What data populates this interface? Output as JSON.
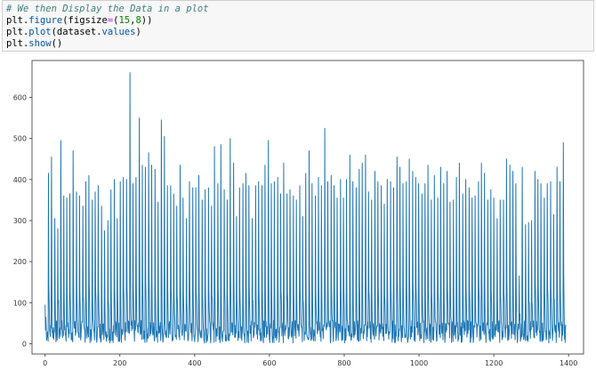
{
  "cell": {
    "lines": [
      {
        "parts": [
          {
            "cls": "cm",
            "text": "# We then Display the Data in a plot"
          }
        ]
      },
      {
        "parts": [
          {
            "cls": "",
            "text": "plt."
          },
          {
            "cls": "fn",
            "text": "figure"
          },
          {
            "cls": "",
            "text": "(figsize"
          },
          {
            "cls": "op",
            "text": "="
          },
          {
            "cls": "",
            "text": "("
          },
          {
            "cls": "num",
            "text": "15"
          },
          {
            "cls": "",
            "text": ","
          },
          {
            "cls": "num",
            "text": "8"
          },
          {
            "cls": "",
            "text": "))"
          }
        ]
      },
      {
        "parts": [
          {
            "cls": "",
            "text": "plt."
          },
          {
            "cls": "fn",
            "text": "plot"
          },
          {
            "cls": "",
            "text": "(dataset."
          },
          {
            "cls": "fn",
            "text": "values"
          },
          {
            "cls": "",
            "text": ")"
          }
        ]
      },
      {
        "parts": [
          {
            "cls": "",
            "text": "plt."
          },
          {
            "cls": "fn",
            "text": "show"
          },
          {
            "cls": "",
            "text": "()"
          }
        ]
      }
    ]
  },
  "chart_data": {
    "type": "line",
    "title": "",
    "xlabel": "",
    "ylabel": "",
    "xlim": [
      -35,
      1440
    ],
    "ylim": [
      -25,
      690
    ],
    "xticks": [
      0,
      200,
      400,
      600,
      800,
      1000,
      1200,
      1400
    ],
    "yticks": [
      0,
      100,
      200,
      300,
      400,
      500,
      600
    ],
    "line_color": "#1f77b4",
    "grid": false,
    "legend": "none",
    "series": [
      {
        "peaks": [
          [
            0,
            95
          ],
          [
            9,
            415
          ],
          [
            17,
            455
          ],
          [
            26,
            305
          ],
          [
            34,
            280
          ],
          [
            42,
            495
          ],
          [
            50,
            360
          ],
          [
            58,
            355
          ],
          [
            66,
            365
          ],
          [
            75,
            470
          ],
          [
            84,
            370
          ],
          [
            92,
            360
          ],
          [
            101,
            335
          ],
          [
            109,
            395
          ],
          [
            117,
            410
          ],
          [
            126,
            350
          ],
          [
            134,
            370
          ],
          [
            142,
            385
          ],
          [
            151,
            335
          ],
          [
            159,
            275
          ],
          [
            168,
            300
          ],
          [
            176,
            375
          ],
          [
            185,
            400
          ],
          [
            193,
            305
          ],
          [
            201,
            395
          ],
          [
            209,
            405
          ],
          [
            218,
            400
          ],
          [
            227,
            660
          ],
          [
            235,
            390
          ],
          [
            243,
            405
          ],
          [
            252,
            550
          ],
          [
            260,
            435
          ],
          [
            268,
            430
          ],
          [
            277,
            465
          ],
          [
            285,
            435
          ],
          [
            294,
            425
          ],
          [
            302,
            345
          ],
          [
            311,
            545
          ],
          [
            319,
            505
          ],
          [
            327,
            385
          ],
          [
            336,
            385
          ],
          [
            344,
            365
          ],
          [
            352,
            335
          ],
          [
            361,
            435
          ],
          [
            369,
            355
          ],
          [
            378,
            305
          ],
          [
            386,
            395
          ],
          [
            395,
            380
          ],
          [
            403,
            380
          ],
          [
            411,
            410
          ],
          [
            420,
            350
          ],
          [
            428,
            375
          ],
          [
            437,
            380
          ],
          [
            445,
            335
          ],
          [
            453,
            480
          ],
          [
            462,
            390
          ],
          [
            470,
            485
          ],
          [
            479,
            375
          ],
          [
            487,
            350
          ],
          [
            495,
            500
          ],
          [
            504,
            440
          ],
          [
            512,
            310
          ],
          [
            520,
            380
          ],
          [
            529,
            390
          ],
          [
            537,
            415
          ],
          [
            545,
            385
          ],
          [
            554,
            305
          ],
          [
            563,
            385
          ],
          [
            571,
            395
          ],
          [
            580,
            385
          ],
          [
            588,
            435
          ],
          [
            597,
            495
          ],
          [
            605,
            390
          ],
          [
            613,
            395
          ],
          [
            622,
            405
          ],
          [
            630,
            365
          ],
          [
            638,
            440
          ],
          [
            647,
            365
          ],
          [
            655,
            375
          ],
          [
            664,
            360
          ],
          [
            672,
            350
          ],
          [
            681,
            385
          ],
          [
            689,
            310
          ],
          [
            697,
            415
          ],
          [
            706,
            470
          ],
          [
            714,
            390
          ],
          [
            723,
            360
          ],
          [
            731,
            405
          ],
          [
            739,
            385
          ],
          [
            748,
            525
          ],
          [
            756,
            395
          ],
          [
            765,
            410
          ],
          [
            773,
            385
          ],
          [
            781,
            355
          ],
          [
            790,
            400
          ],
          [
            798,
            355
          ],
          [
            806,
            400
          ],
          [
            815,
            460
          ],
          [
            823,
            395
          ],
          [
            832,
            380
          ],
          [
            840,
            425
          ],
          [
            848,
            440
          ],
          [
            857,
            460
          ],
          [
            865,
            370
          ],
          [
            873,
            350
          ],
          [
            882,
            420
          ],
          [
            890,
            395
          ],
          [
            899,
            385
          ],
          [
            907,
            340
          ],
          [
            915,
            400
          ],
          [
            924,
            395
          ],
          [
            932,
            380
          ],
          [
            941,
            455
          ],
          [
            949,
            430
          ],
          [
            957,
            390
          ],
          [
            966,
            395
          ],
          [
            974,
            450
          ],
          [
            983,
            420
          ],
          [
            991,
            405
          ],
          [
            999,
            390
          ],
          [
            1008,
            365
          ],
          [
            1016,
            390
          ],
          [
            1024,
            435
          ],
          [
            1033,
            350
          ],
          [
            1041,
            410
          ],
          [
            1050,
            355
          ],
          [
            1058,
            430
          ],
          [
            1066,
            390
          ],
          [
            1075,
            420
          ],
          [
            1083,
            345
          ],
          [
            1092,
            350
          ],
          [
            1100,
            405
          ],
          [
            1108,
            440
          ],
          [
            1117,
            365
          ],
          [
            1125,
            400
          ],
          [
            1134,
            380
          ],
          [
            1142,
            355
          ],
          [
            1150,
            360
          ],
          [
            1159,
            395
          ],
          [
            1167,
            440
          ],
          [
            1175,
            415
          ],
          [
            1184,
            350
          ],
          [
            1192,
            375
          ],
          [
            1200,
            355
          ],
          [
            1209,
            305
          ],
          [
            1217,
            350
          ],
          [
            1226,
            350
          ],
          [
            1234,
            450
          ],
          [
            1243,
            435
          ],
          [
            1251,
            420
          ],
          [
            1259,
            390
          ],
          [
            1268,
            165
          ],
          [
            1276,
            430
          ],
          [
            1285,
            290
          ],
          [
            1293,
            295
          ],
          [
            1301,
            300
          ],
          [
            1310,
            420
          ],
          [
            1318,
            400
          ],
          [
            1326,
            390
          ],
          [
            1335,
            355
          ],
          [
            1343,
            390
          ],
          [
            1352,
            395
          ],
          [
            1360,
            315
          ],
          [
            1369,
            430
          ],
          [
            1377,
            395
          ],
          [
            1386,
            490
          ]
        ]
      }
    ]
  }
}
